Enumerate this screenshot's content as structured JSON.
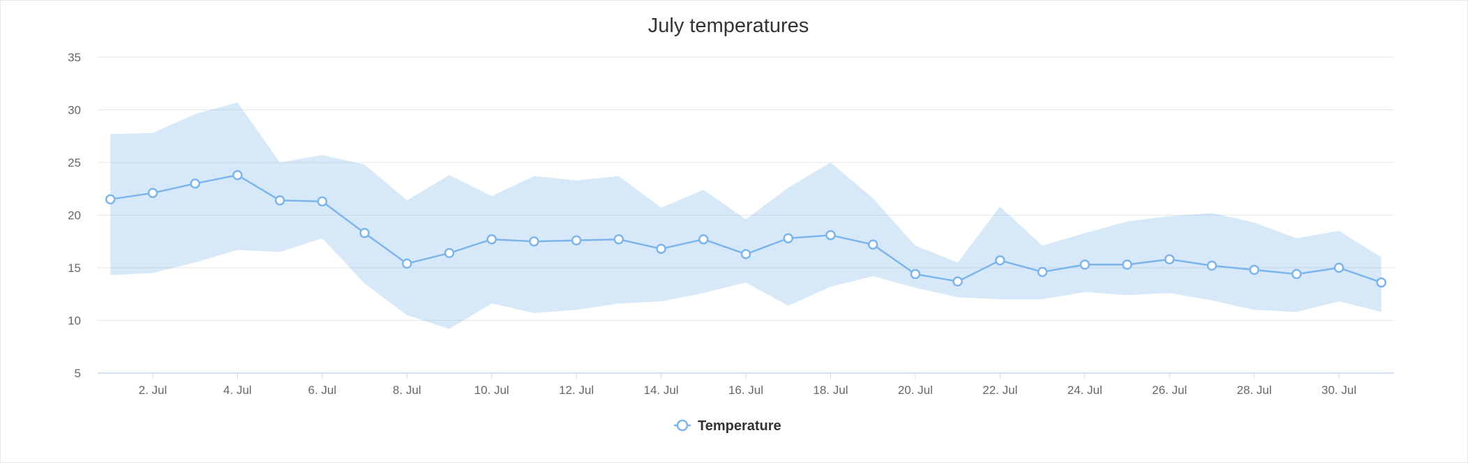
{
  "chart_data": {
    "type": "line",
    "title": "July temperatures",
    "xlabel": "",
    "ylabel": "",
    "x": [
      1,
      2,
      3,
      4,
      5,
      6,
      7,
      8,
      9,
      10,
      11,
      12,
      13,
      14,
      15,
      16,
      17,
      18,
      19,
      20,
      21,
      22,
      23,
      24,
      25,
      26,
      27,
      28,
      29,
      30,
      31
    ],
    "x_tick_labels": [
      "2. Jul",
      "4. Jul",
      "6. Jul",
      "8. Jul",
      "10. Jul",
      "12. Jul",
      "14. Jul",
      "16. Jul",
      "18. Jul",
      "20. Jul",
      "22. Jul",
      "24. Jul",
      "26. Jul",
      "28. Jul",
      "30. Jul"
    ],
    "x_tick_days": [
      2,
      4,
      6,
      8,
      10,
      12,
      14,
      16,
      18,
      20,
      22,
      24,
      26,
      28,
      30
    ],
    "xlim": [
      0.7,
      31.3
    ],
    "ylim": [
      5,
      35
    ],
    "y_ticks": [
      5,
      10,
      15,
      20,
      25,
      30,
      35
    ],
    "grid": "horizontal",
    "legend_position": "bottom-center",
    "series": [
      {
        "name": "Temperature",
        "kind": "line",
        "color": "#7cb5ec",
        "values": [
          21.5,
          22.1,
          23.0,
          23.8,
          21.4,
          21.3,
          18.3,
          15.4,
          16.4,
          17.7,
          17.5,
          17.6,
          17.7,
          16.8,
          17.7,
          16.3,
          17.8,
          18.1,
          17.2,
          14.4,
          13.7,
          15.7,
          14.6,
          15.3,
          15.3,
          15.8,
          15.2,
          14.8,
          14.4,
          15.0,
          13.6
        ]
      },
      {
        "kind": "range",
        "color": "#7cb5ec",
        "low": [
          14.3,
          14.5,
          15.5,
          16.7,
          16.5,
          17.8,
          13.5,
          10.5,
          9.2,
          11.6,
          10.7,
          11.0,
          11.6,
          11.8,
          12.6,
          13.6,
          11.4,
          13.2,
          14.2,
          13.1,
          12.2,
          12.0,
          12.0,
          12.7,
          12.4,
          12.6,
          11.9,
          11.0,
          10.8,
          11.8,
          10.8
        ],
        "high": [
          27.7,
          27.8,
          29.6,
          30.7,
          25.0,
          25.7,
          24.8,
          21.4,
          23.8,
          21.8,
          23.7,
          23.3,
          23.7,
          20.7,
          22.4,
          19.6,
          22.6,
          25.0,
          21.6,
          17.1,
          15.5,
          20.8,
          17.1,
          18.3,
          19.4,
          19.9,
          20.2,
          19.3,
          17.8,
          18.5,
          16.0
        ]
      }
    ]
  }
}
